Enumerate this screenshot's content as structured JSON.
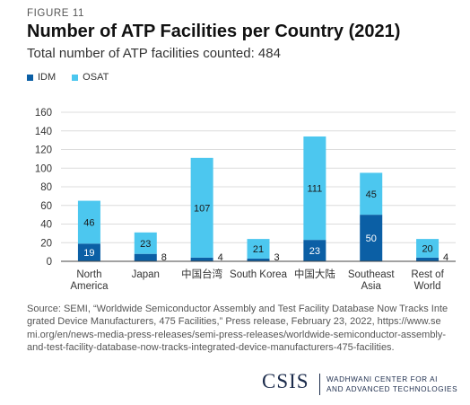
{
  "figure_label": "FIGURE 11",
  "title": "Number of ATP Facilities per Country (2021)",
  "subtitle": "Total number of ATP facilities counted: 484",
  "legend": [
    {
      "name": "IDM",
      "color": "#0b5fa5"
    },
    {
      "name": "OSAT",
      "color": "#4cc7ef"
    }
  ],
  "chart_data": {
    "type": "bar",
    "stacked": true,
    "categories": [
      [
        "North",
        "America"
      ],
      [
        "Japan"
      ],
      [
        "中国台湾"
      ],
      [
        "South Korea"
      ],
      [
        "中国大陆"
      ],
      [
        "Southeast",
        "Asia"
      ],
      [
        "Rest of",
        "World"
      ]
    ],
    "series": [
      {
        "name": "IDM",
        "color": "#0b5fa5",
        "values": [
          19,
          8,
          4,
          3,
          23,
          50,
          4
        ]
      },
      {
        "name": "OSAT",
        "color": "#4cc7ef",
        "values": [
          46,
          23,
          107,
          21,
          111,
          45,
          20
        ]
      }
    ],
    "data_labels": [
      [
        {
          "text": "19",
          "position": "inside"
        },
        {
          "text": "8",
          "position": "right"
        },
        {
          "text": "4",
          "position": "right"
        },
        {
          "text": "3",
          "position": "right"
        },
        {
          "text": "23",
          "position": "inside"
        },
        {
          "text": "50",
          "position": "inside"
        },
        {
          "text": "4",
          "position": "right"
        }
      ],
      [
        {
          "text": "46",
          "position": "inside"
        },
        {
          "text": "23",
          "position": "inside"
        },
        {
          "text": "107",
          "position": "inside"
        },
        {
          "text": "21",
          "position": "inside"
        },
        {
          "text": "111",
          "position": "inside"
        },
        {
          "text": "45",
          "position": "inside"
        },
        {
          "text": "20",
          "position": "inside"
        }
      ]
    ],
    "y_ticks": [
      0,
      20,
      40,
      60,
      80,
      100,
      120,
      140,
      160
    ],
    "ylim": [
      0,
      160
    ],
    "grid": true,
    "legend_position": "top-left"
  },
  "source_text": "Source: SEMI, “Worldwide Semiconductor Assembly and Test Facility Database Now Tracks Integrated Device Manufacturers, 475 Facilities,” Press release, February 23, 2022, https://www.semi.org/en/news-media-press-releases/semi-press-releases/worldwide-semiconductor-assembly-and-test-facility-database-now-tracks-integrated-device-manufacturers-475-facilities.",
  "branding": {
    "logo_text": "CSIS",
    "center_line1": "WADHWANI CENTER FOR AI",
    "center_line2": "AND ADVANCED TECHNOLOGIES"
  }
}
